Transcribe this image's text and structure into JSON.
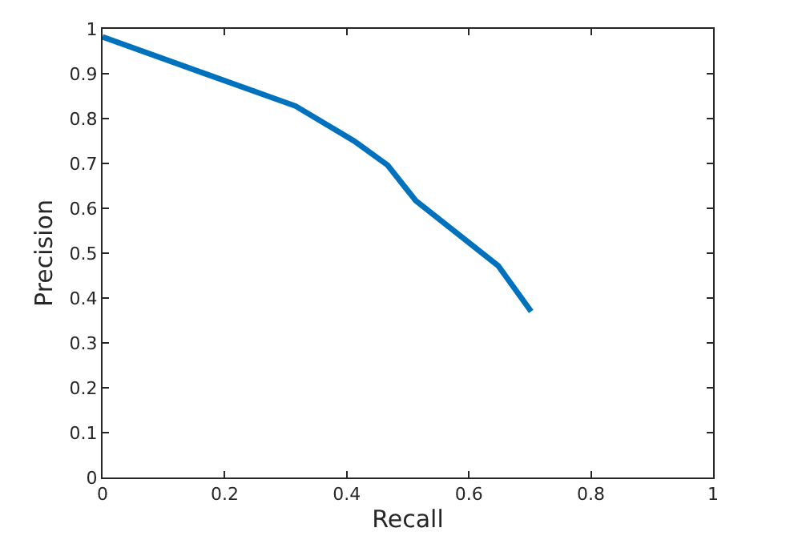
{
  "chart_data": {
    "type": "line",
    "xlabel": "Recall",
    "ylabel": "Precision",
    "x": [
      0,
      0.316,
      0.412,
      0.467,
      0.513,
      0.648,
      0.702
    ],
    "series": [
      {
        "color": "#0072bd",
        "values": [
          0.982,
          0.828,
          0.75,
          0.696,
          0.617,
          0.472,
          0.37
        ]
      }
    ],
    "xlim": [
      0,
      1
    ],
    "xticks": [
      0,
      0.2,
      0.4,
      0.6,
      0.8,
      1
    ],
    "ylim": [
      0,
      1
    ],
    "yticks": [
      0,
      0.1,
      0.2,
      0.3,
      0.4,
      0.5,
      0.6,
      0.7,
      0.8,
      0.9,
      1
    ],
    "marker": "none",
    "line_style": "solid"
  }
}
